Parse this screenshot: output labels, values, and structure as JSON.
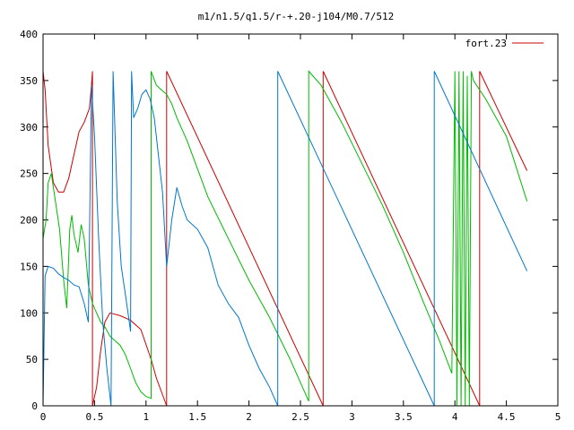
{
  "chart_data": {
    "type": "line",
    "title": "m1/n1.5/q1.5/r-+.20-j104/M0.7/512",
    "xlim": [
      0,
      5
    ],
    "ylim": [
      0,
      400
    ],
    "xticks": [
      0,
      0.5,
      1,
      1.5,
      2,
      2.5,
      3,
      3.5,
      4,
      4.5,
      5
    ],
    "xtick_labels": [
      "0",
      "0.5",
      "1",
      "1.5",
      "2",
      "2.5",
      "3",
      "3.5",
      "4",
      "4.5",
      "5"
    ],
    "yticks": [
      0,
      50,
      100,
      150,
      200,
      250,
      300,
      350,
      400
    ],
    "ytick_labels": [
      "0",
      "50",
      "100",
      "150",
      "200",
      "250",
      "300",
      "350",
      "400"
    ],
    "legend": {
      "label": "fort.23",
      "placement": "top-right"
    },
    "colors": {
      "red": "#cc0000",
      "green": "#00bb00",
      "blue": "#0077cc"
    },
    "series": [
      {
        "name": "fort.23",
        "color": "red",
        "points": [
          [
            0.0,
            360
          ],
          [
            0.02,
            340
          ],
          [
            0.05,
            280
          ],
          [
            0.1,
            240
          ],
          [
            0.15,
            230
          ],
          [
            0.2,
            230
          ],
          [
            0.25,
            245
          ],
          [
            0.3,
            270
          ],
          [
            0.35,
            295
          ],
          [
            0.4,
            305
          ],
          [
            0.45,
            320
          ],
          [
            0.47,
            345
          ],
          [
            0.48,
            360
          ],
          [
            0.48,
            0
          ],
          [
            0.52,
            20
          ],
          [
            0.56,
            60
          ],
          [
            0.6,
            90
          ],
          [
            0.65,
            100
          ],
          [
            0.75,
            97
          ],
          [
            0.85,
            92
          ],
          [
            0.95,
            82
          ],
          [
            1.05,
            50
          ],
          [
            1.1,
            30
          ],
          [
            1.2,
            0
          ],
          [
            1.2,
            360
          ],
          [
            2.72,
            0
          ],
          [
            2.72,
            360
          ],
          [
            4.24,
            0
          ],
          [
            4.24,
            360
          ],
          [
            4.7,
            253
          ]
        ]
      },
      {
        "color": "green",
        "points": [
          [
            0.0,
            180
          ],
          [
            0.03,
            200
          ],
          [
            0.05,
            240
          ],
          [
            0.08,
            250
          ],
          [
            0.12,
            220
          ],
          [
            0.16,
            190
          ],
          [
            0.2,
            135
          ],
          [
            0.23,
            105
          ],
          [
            0.26,
            190
          ],
          [
            0.28,
            205
          ],
          [
            0.3,
            185
          ],
          [
            0.34,
            165
          ],
          [
            0.37,
            195
          ],
          [
            0.4,
            180
          ],
          [
            0.44,
            130
          ],
          [
            0.48,
            110
          ],
          [
            0.52,
            100
          ],
          [
            0.56,
            90
          ],
          [
            0.6,
            85
          ],
          [
            0.65,
            75
          ],
          [
            0.7,
            70
          ],
          [
            0.75,
            65
          ],
          [
            0.8,
            55
          ],
          [
            0.85,
            40
          ],
          [
            0.9,
            25
          ],
          [
            0.95,
            15
          ],
          [
            1.0,
            10
          ],
          [
            1.05,
            8
          ],
          [
            1.05,
            360
          ],
          [
            1.1,
            345
          ],
          [
            1.15,
            340
          ],
          [
            1.2,
            335
          ],
          [
            1.25,
            325
          ],
          [
            1.3,
            310
          ],
          [
            1.4,
            285
          ],
          [
            1.5,
            255
          ],
          [
            1.6,
            225
          ],
          [
            1.8,
            180
          ],
          [
            2.0,
            135
          ],
          [
            2.2,
            95
          ],
          [
            2.4,
            50
          ],
          [
            2.58,
            5
          ],
          [
            2.58,
            360
          ],
          [
            2.7,
            345
          ],
          [
            2.9,
            305
          ],
          [
            3.1,
            260
          ],
          [
            3.3,
            215
          ],
          [
            3.5,
            165
          ],
          [
            3.7,
            110
          ],
          [
            3.85,
            70
          ],
          [
            3.97,
            35
          ],
          [
            4.0,
            360
          ],
          [
            4.02,
            0
          ],
          [
            4.04,
            360
          ],
          [
            4.06,
            0
          ],
          [
            4.08,
            360
          ],
          [
            4.1,
            0
          ],
          [
            4.12,
            355
          ],
          [
            4.14,
            0
          ],
          [
            4.16,
            360
          ],
          [
            4.18,
            350
          ],
          [
            4.3,
            330
          ],
          [
            4.5,
            290
          ],
          [
            4.7,
            220
          ]
        ]
      },
      {
        "color": "blue",
        "points": [
          [
            0.0,
            0
          ],
          [
            0.02,
            140
          ],
          [
            0.05,
            150
          ],
          [
            0.1,
            148
          ],
          [
            0.15,
            142
          ],
          [
            0.2,
            138
          ],
          [
            0.25,
            135
          ],
          [
            0.3,
            130
          ],
          [
            0.35,
            128
          ],
          [
            0.4,
            110
          ],
          [
            0.44,
            90
          ],
          [
            0.47,
            345
          ],
          [
            0.5,
            290
          ],
          [
            0.54,
            180
          ],
          [
            0.58,
            90
          ],
          [
            0.62,
            40
          ],
          [
            0.66,
            0
          ],
          [
            0.68,
            360
          ],
          [
            0.72,
            220
          ],
          [
            0.76,
            150
          ],
          [
            0.8,
            120
          ],
          [
            0.85,
            80
          ],
          [
            0.86,
            360
          ],
          [
            0.88,
            310
          ],
          [
            0.92,
            320
          ],
          [
            0.96,
            335
          ],
          [
            1.0,
            340
          ],
          [
            1.04,
            330
          ],
          [
            1.08,
            310
          ],
          [
            1.12,
            270
          ],
          [
            1.16,
            230
          ],
          [
            1.2,
            150
          ],
          [
            1.25,
            200
          ],
          [
            1.3,
            235
          ],
          [
            1.35,
            215
          ],
          [
            1.4,
            200
          ],
          [
            1.5,
            190
          ],
          [
            1.6,
            170
          ],
          [
            1.7,
            130
          ],
          [
            1.8,
            110
          ],
          [
            1.9,
            95
          ],
          [
            2.0,
            65
          ],
          [
            2.1,
            40
          ],
          [
            2.2,
            20
          ],
          [
            2.28,
            0
          ],
          [
            2.28,
            360
          ],
          [
            3.8,
            0
          ],
          [
            3.8,
            360
          ],
          [
            4.7,
            145
          ]
        ]
      }
    ]
  }
}
